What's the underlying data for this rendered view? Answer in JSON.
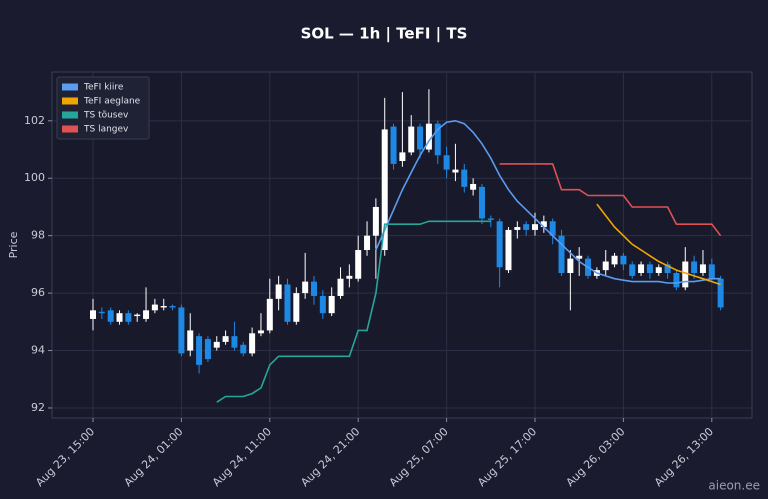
{
  "chart_data": {
    "type": "candlestick",
    "title": "SOL — 1h  |  TeFI  |  TS",
    "y_label": "Price",
    "watermark": "aieon.ee",
    "up_color": "#ffffff",
    "down_color": "#1e88e5",
    "grid": true,
    "legend": "upper left",
    "ylim": [
      91.65,
      103.7
    ],
    "yticks": [
      92,
      94,
      96,
      98,
      100,
      102
    ],
    "categories": [
      "Aug 23, 15:00",
      null,
      null,
      null,
      null,
      null,
      null,
      null,
      null,
      null,
      "Aug 24, 01:00",
      null,
      null,
      null,
      null,
      null,
      null,
      null,
      null,
      null,
      "Aug 24, 11:00",
      null,
      null,
      null,
      null,
      null,
      null,
      null,
      null,
      null,
      "Aug 24, 21:00",
      null,
      null,
      null,
      null,
      null,
      null,
      null,
      null,
      null,
      "Aug 25, 07:00",
      null,
      null,
      null,
      null,
      null,
      null,
      null,
      null,
      null,
      "Aug 25, 17:00",
      null,
      null,
      null,
      null,
      null,
      null,
      null,
      null,
      null,
      "Aug 26, 03:00",
      null,
      null,
      null,
      null,
      null,
      null,
      null,
      null,
      null,
      "Aug 26, 13:00",
      null
    ],
    "open": [
      95.1,
      95.35,
      95.4,
      95.0,
      95.3,
      95.2,
      95.1,
      95.4,
      95.5,
      95.55,
      95.5,
      94.0,
      94.5,
      94.4,
      94.1,
      94.3,
      94.5,
      94.2,
      93.9,
      94.6,
      94.7,
      95.8,
      96.3,
      95.0,
      96.0,
      96.4,
      95.9,
      95.3,
      95.9,
      96.5,
      96.5,
      97.5,
      98.0,
      97.5,
      101.8,
      100.6,
      100.9,
      101.8,
      101.0,
      101.9,
      100.8,
      100.2,
      100.3,
      99.6,
      99.7,
      98.6,
      98.5,
      96.8,
      98.2,
      98.4,
      98.2,
      98.3,
      98.5,
      98.0,
      96.7,
      97.2,
      97.2,
      96.6,
      96.8,
      97.0,
      97.3,
      97.0,
      96.7,
      97.0,
      96.7,
      97.0,
      96.7,
      96.2,
      97.1,
      96.7,
      97.0,
      96.5
    ],
    "high": [
      95.8,
      95.5,
      95.5,
      95.4,
      95.4,
      95.3,
      96.2,
      95.8,
      95.8,
      95.6,
      95.6,
      95.3,
      94.6,
      94.5,
      94.5,
      94.7,
      95.0,
      94.3,
      94.8,
      95.3,
      96.5,
      96.6,
      96.5,
      96.2,
      97.4,
      96.6,
      96.1,
      96.2,
      96.9,
      97.0,
      98.0,
      98.5,
      99.3,
      102.8,
      101.9,
      103.0,
      102.2,
      101.9,
      103.1,
      102.0,
      101.1,
      101.2,
      100.5,
      100.0,
      99.8,
      98.7,
      98.6,
      98.3,
      98.5,
      98.5,
      98.8,
      98.7,
      98.6,
      98.2,
      97.5,
      97.6,
      97.3,
      96.9,
      97.5,
      97.4,
      97.4,
      97.1,
      97.1,
      97.1,
      97.0,
      97.1,
      96.8,
      97.6,
      97.3,
      97.5,
      97.2,
      96.6
    ],
    "low": [
      94.7,
      95.1,
      94.9,
      94.9,
      94.9,
      95.0,
      95.0,
      95.3,
      95.4,
      95.4,
      93.8,
      93.8,
      93.2,
      93.6,
      94.0,
      94.2,
      94.0,
      93.8,
      93.8,
      94.5,
      94.6,
      95.4,
      94.9,
      94.9,
      95.8,
      95.6,
      95.1,
      95.2,
      95.8,
      96.2,
      96.4,
      97.3,
      96.5,
      97.3,
      100.3,
      100.4,
      100.8,
      100.7,
      100.9,
      100.5,
      100.0,
      99.9,
      99.5,
      99.4,
      98.4,
      98.3,
      96.2,
      96.7,
      97.9,
      98.0,
      98.0,
      98.1,
      97.7,
      96.6,
      95.4,
      96.6,
      96.5,
      96.5,
      96.6,
      96.9,
      96.8,
      96.5,
      96.6,
      96.5,
      96.6,
      96.5,
      96.1,
      96.1,
      96.5,
      96.6,
      96.4,
      95.4
    ],
    "close": [
      95.4,
      95.3,
      95.0,
      95.3,
      95.0,
      95.25,
      95.4,
      95.6,
      95.55,
      95.5,
      93.9,
      94.7,
      93.5,
      93.7,
      94.3,
      94.5,
      94.1,
      93.9,
      94.6,
      94.7,
      95.8,
      96.3,
      95.0,
      96.0,
      96.4,
      95.9,
      95.3,
      95.9,
      96.5,
      96.6,
      97.5,
      98.0,
      99.0,
      101.7,
      100.5,
      100.9,
      101.8,
      101.0,
      101.9,
      100.8,
      100.3,
      100.3,
      99.7,
      99.8,
      98.6,
      98.55,
      96.9,
      98.2,
      98.3,
      98.2,
      98.4,
      98.5,
      98.0,
      96.7,
      97.2,
      97.3,
      96.6,
      96.8,
      97.1,
      97.3,
      97.0,
      96.6,
      97.0,
      96.7,
      96.9,
      96.7,
      96.2,
      97.1,
      96.7,
      97.0,
      96.5,
      95.5
    ],
    "series": [
      {
        "name": "TeFI kiire",
        "color": "#5b9bf0",
        "values": [
          null,
          null,
          null,
          null,
          null,
          null,
          null,
          null,
          null,
          null,
          null,
          null,
          null,
          null,
          null,
          null,
          null,
          null,
          null,
          null,
          null,
          null,
          null,
          null,
          null,
          null,
          null,
          null,
          null,
          null,
          null,
          null,
          97.5,
          98.2,
          98.9,
          99.6,
          100.2,
          100.8,
          101.3,
          101.7,
          101.95,
          102.0,
          101.9,
          101.6,
          101.2,
          100.7,
          100.1,
          99.6,
          99.2,
          98.9,
          98.6,
          98.3,
          98.0,
          97.7,
          97.4,
          97.1,
          96.9,
          96.7,
          96.6,
          96.5,
          96.45,
          96.4,
          96.4,
          96.4,
          96.4,
          96.35,
          96.35,
          96.4,
          96.4,
          96.45,
          96.5,
          96.5
        ]
      },
      {
        "name": "TeFI aeglane",
        "color": "#f0a500",
        "values": [
          null,
          null,
          null,
          null,
          null,
          null,
          null,
          null,
          null,
          null,
          null,
          null,
          null,
          null,
          null,
          null,
          null,
          null,
          null,
          null,
          null,
          null,
          null,
          null,
          null,
          null,
          null,
          null,
          null,
          null,
          null,
          null,
          null,
          null,
          null,
          null,
          null,
          null,
          null,
          null,
          null,
          null,
          null,
          null,
          null,
          null,
          null,
          null,
          null,
          null,
          null,
          null,
          null,
          null,
          null,
          null,
          null,
          99.1,
          98.7,
          98.3,
          98.0,
          97.7,
          97.5,
          97.3,
          97.1,
          96.95,
          96.8,
          96.7,
          96.6,
          96.5,
          96.4,
          96.3
        ]
      },
      {
        "name": "TS tõusev",
        "color": "#26a69a",
        "values": [
          null,
          null,
          null,
          null,
          null,
          null,
          null,
          null,
          null,
          null,
          null,
          null,
          null,
          null,
          92.2,
          92.4,
          92.4,
          92.4,
          92.5,
          92.7,
          93.5,
          93.8,
          93.8,
          93.8,
          93.8,
          93.8,
          93.8,
          93.8,
          93.8,
          93.8,
          94.7,
          94.7,
          96.0,
          98.4,
          98.4,
          98.4,
          98.4,
          98.4,
          98.5,
          98.5,
          98.5,
          98.5,
          98.5,
          98.5,
          98.5,
          98.5,
          null,
          null,
          null,
          null,
          null,
          null,
          null,
          null,
          null,
          null,
          null,
          null,
          null,
          null,
          null,
          null,
          null,
          null,
          null,
          null,
          null,
          null,
          null,
          null,
          null,
          null
        ]
      },
      {
        "name": "TS langev",
        "color": "#e05252",
        "values": [
          null,
          null,
          null,
          null,
          null,
          null,
          null,
          null,
          null,
          null,
          null,
          null,
          null,
          null,
          null,
          null,
          null,
          null,
          null,
          null,
          null,
          null,
          null,
          null,
          null,
          null,
          null,
          null,
          null,
          null,
          null,
          null,
          null,
          null,
          null,
          null,
          null,
          null,
          null,
          null,
          null,
          null,
          null,
          null,
          null,
          null,
          100.5,
          100.5,
          100.5,
          100.5,
          100.5,
          100.5,
          100.5,
          99.6,
          99.6,
          99.6,
          99.4,
          99.4,
          99.4,
          99.4,
          99.4,
          99.0,
          99.0,
          99.0,
          99.0,
          99.0,
          98.4,
          98.4,
          98.4,
          98.4,
          98.4,
          98.0
        ]
      }
    ]
  }
}
